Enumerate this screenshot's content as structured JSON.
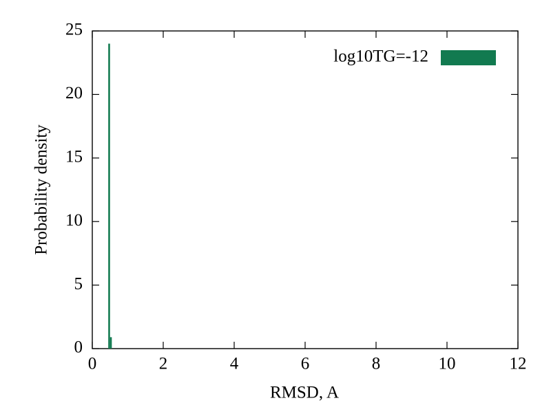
{
  "chart_data": {
    "type": "histogram",
    "xlabel": "RMSD, A",
    "ylabel": "Probability density",
    "bins": [
      0.45,
      0.5,
      0.55
    ],
    "series": [
      {
        "name": "log10TG=-12",
        "color": "#127a50",
        "values": [
          24,
          0.9
        ]
      }
    ],
    "xlim": [
      0,
      12
    ],
    "xticks": [
      0,
      2,
      4,
      6,
      8,
      10,
      12
    ],
    "ylim": [
      0,
      25
    ],
    "yticks": [
      0,
      5,
      10,
      15,
      20,
      25
    ],
    "grid": false,
    "legend": "upper right"
  }
}
